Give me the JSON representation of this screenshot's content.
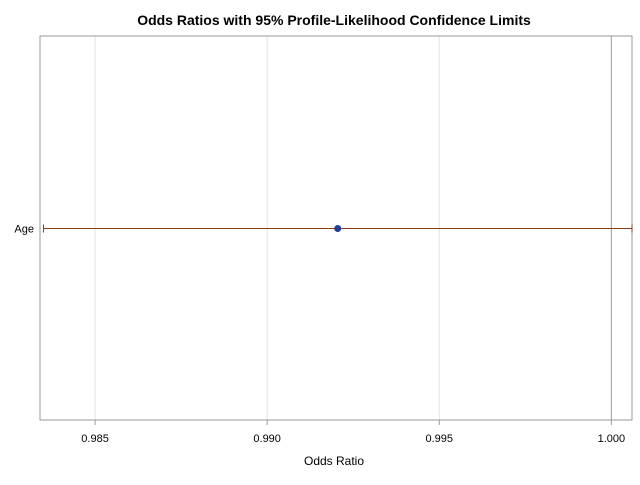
{
  "chart_data": {
    "type": "odds-ratio-plot",
    "title": "Odds Ratios with 95% Profile-Likelihood Confidence Limits",
    "xlabel": "Odds Ratio",
    "ylabel": "",
    "xlim": [
      0.9834,
      1.0006
    ],
    "x_ticks": [
      0.985,
      0.99,
      0.995,
      1.0
    ],
    "x_tick_labels": [
      "0.985",
      "0.990",
      "0.995",
      "1.000"
    ],
    "reference_line": 1.0,
    "grid": true,
    "rows": [
      {
        "label": "Age",
        "estimate": 0.99205,
        "lower": 0.9835,
        "upper": 1.0006
      }
    ],
    "colors": {
      "point": "#1f3f97",
      "interval": "#8b3a1a",
      "grid": "#e3e3e3",
      "frame": "#9a9a9a",
      "reference": "#a0a0a0",
      "text": "#000000"
    }
  }
}
